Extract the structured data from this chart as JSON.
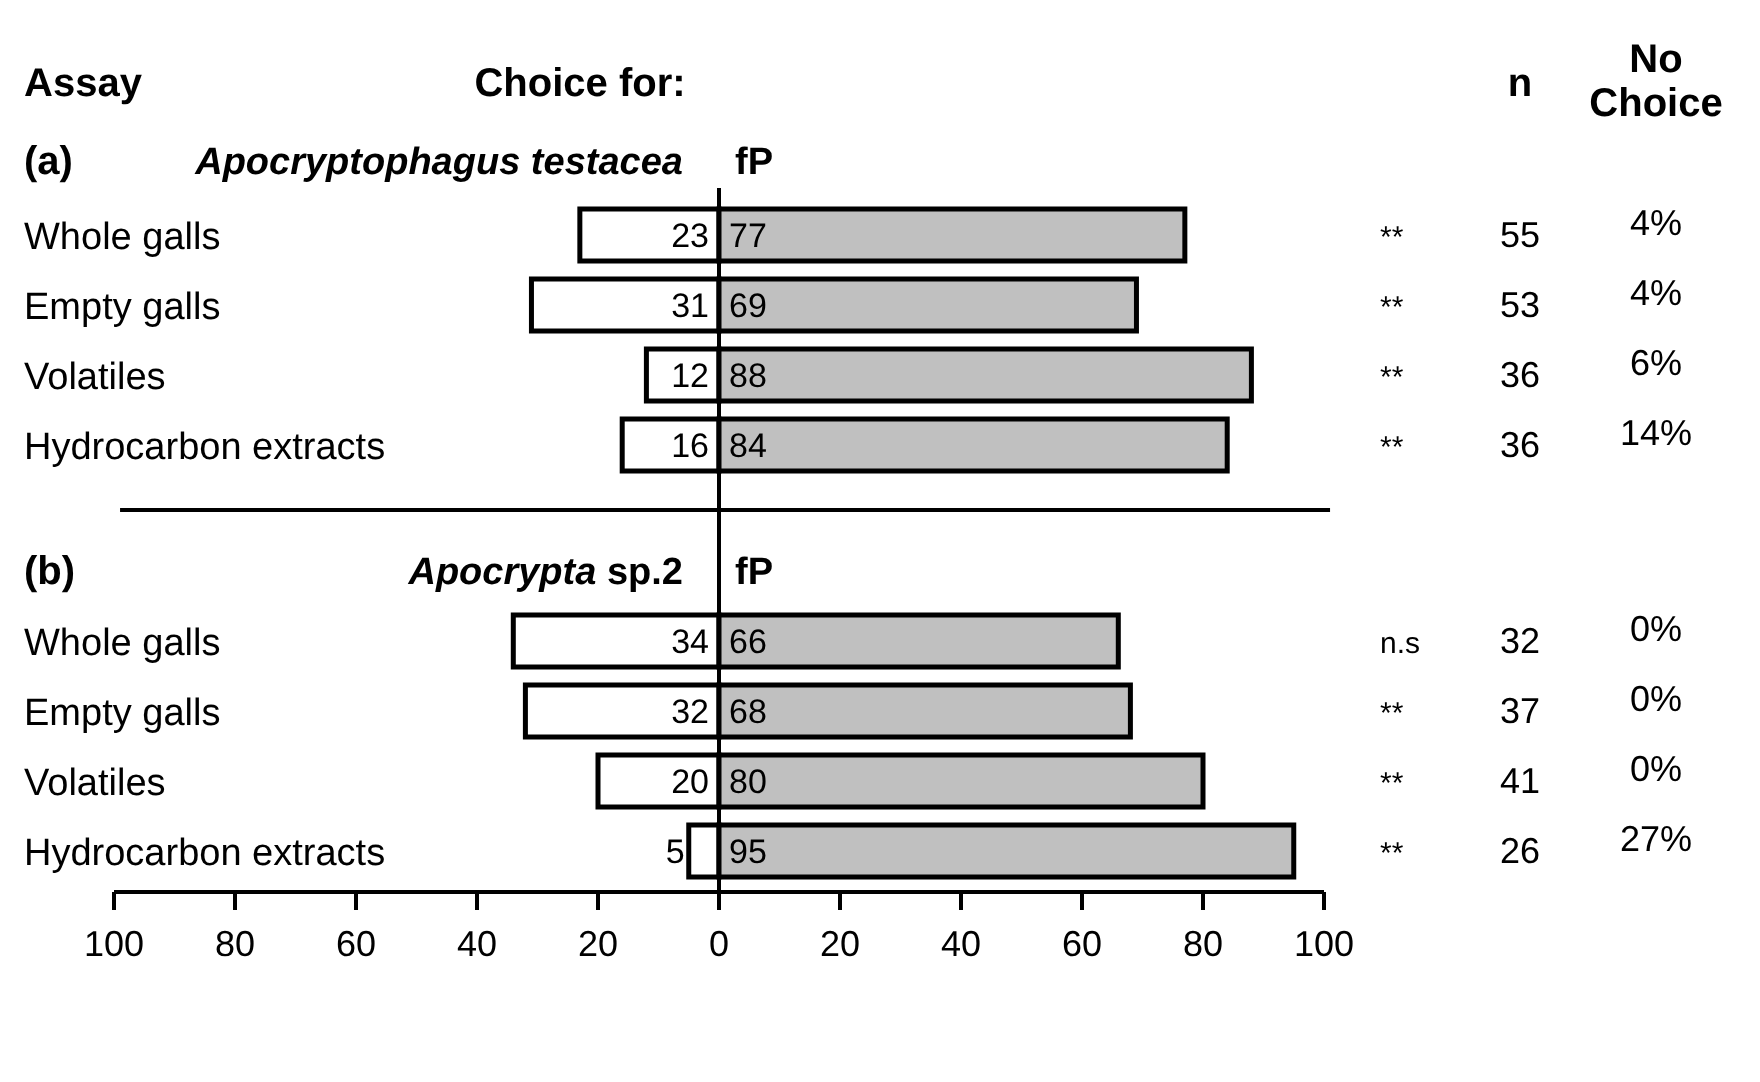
{
  "chart_data": [
    {
      "type": "bar",
      "orientation": "horizontal",
      "title": "Choice for:",
      "ylabel": "Assay",
      "subtitle": "(a)",
      "categories": [
        "Whole galls",
        "Empty galls",
        "Volatiles",
        "Hydrocarbon extracts"
      ],
      "xlim": [
        -100,
        100
      ],
      "tick_labels": "y",
      "series": [
        {
          "name": "Apocryptophagus testacea",
          "color": "#ffffff",
          "values": [
            23,
            31,
            12,
            16
          ],
          "base": [
            -23,
            -31,
            -12,
            -16
          ],
          "value_labels": [
            "23",
            "31",
            "12",
            "16"
          ]
        },
        {
          "name": "fP",
          "color": "#c0c0c0",
          "values": [
            77,
            69,
            88,
            84
          ],
          "value_labels": [
            "77",
            "69",
            "88",
            "84"
          ]
        }
      ],
      "annotations": [
        "n",
        "No Choice",
        "**",
        "55",
        "4%",
        "**",
        "53",
        "4%",
        "**",
        "36",
        "6%",
        "**",
        "36",
        "14%"
      ]
    },
    {
      "type": "bar",
      "orientation": "horizontal",
      "subtitle": "(b)",
      "categories": [
        "Whole galls",
        "Empty galls",
        "Volatiles",
        "Hydrocarbon extracts"
      ],
      "xlim": [
        -100,
        100
      ],
      "xticks": [
        {
          "value": -100,
          "label": "100"
        },
        {
          "value": -80,
          "label": "80"
        },
        {
          "value": -60,
          "label": "60"
        },
        {
          "value": -40,
          "label": "40"
        },
        {
          "value": -20,
          "label": "20"
        },
        0,
        20,
        40,
        60,
        80,
        100
      ],
      "series": [
        {
          "name": "Apocrypta sp.2",
          "color": "#ffffff",
          "values": [
            34,
            32,
            20,
            5
          ],
          "base": [
            -34,
            -32,
            -20,
            -5
          ],
          "value_labels": [
            "34",
            "32",
            "20",
            "5"
          ]
        },
        {
          "name": "fP",
          "color": "#c0c0c0",
          "values": [
            66,
            68,
            80,
            95
          ],
          "value_labels": [
            "66",
            "68",
            "80",
            "95"
          ]
        }
      ],
      "annotations": [
        "n.s",
        "32",
        "0%",
        "**",
        "37",
        "0%",
        "**",
        "41",
        "0%",
        "**",
        "26",
        "27%"
      ]
    }
  ]
}
